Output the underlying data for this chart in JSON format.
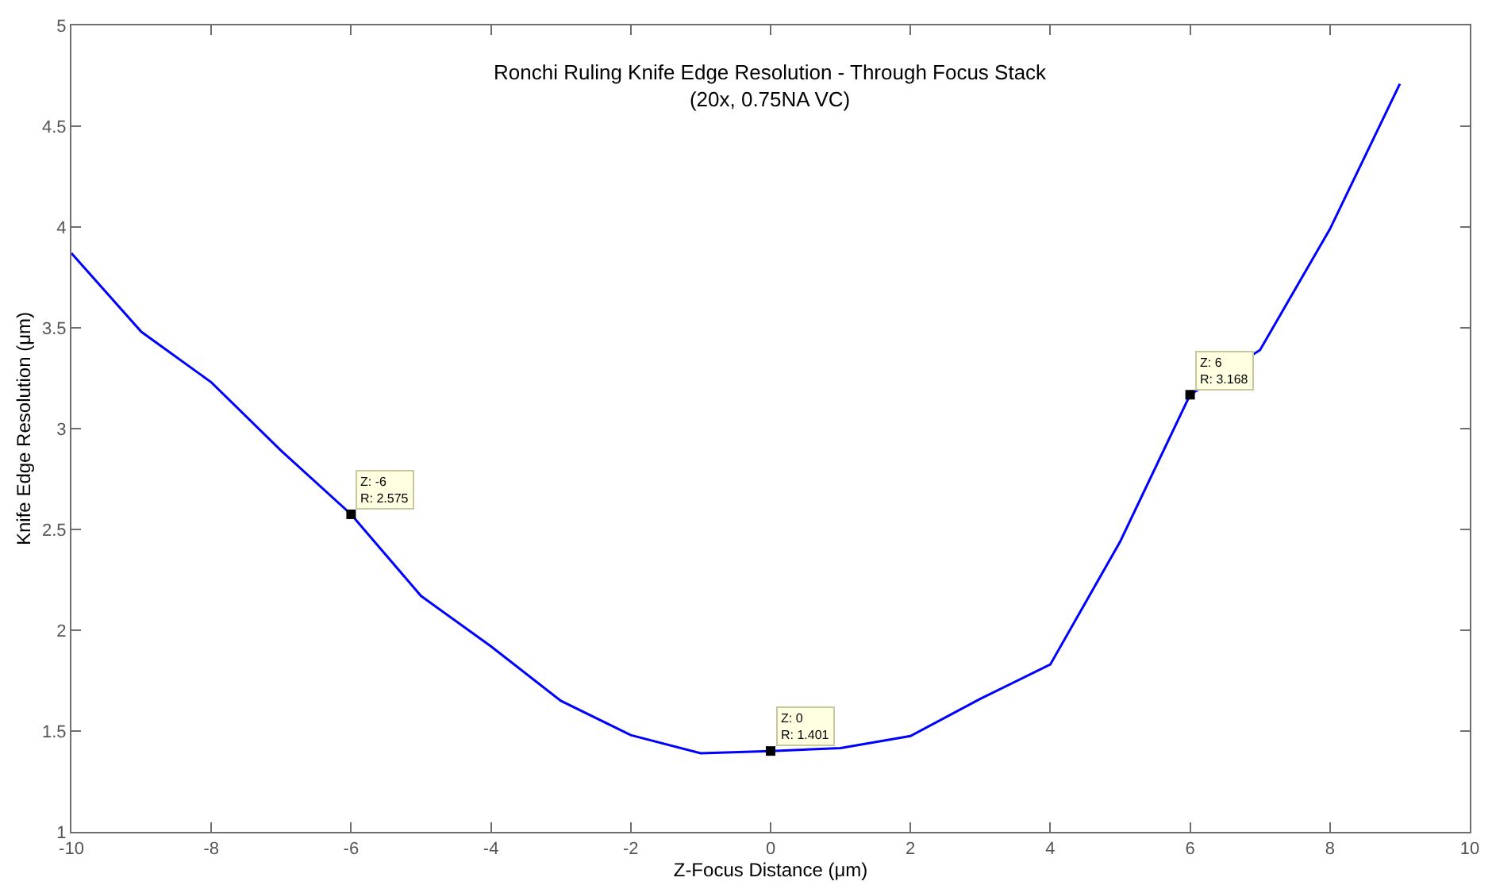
{
  "chart_data": {
    "type": "line",
    "title": "Ronchi Ruling Knife Edge Resolution - Through Focus Stack",
    "subtitle": "(20x, 0.75NA VC)",
    "xlabel": "Z-Focus Distance (μm)",
    "ylabel": "Knife Edge Resolution (μm)",
    "x": [
      -10,
      -9,
      -8,
      -7,
      -6,
      -5,
      -4,
      -3,
      -2,
      -1,
      0,
      1,
      2,
      3,
      4,
      5,
      6,
      7,
      8,
      9
    ],
    "series": [
      {
        "color": "#0000ff",
        "values": [
          3.87,
          3.48,
          3.23,
          2.89,
          2.575,
          2.17,
          1.92,
          1.65,
          1.48,
          1.39,
          1.401,
          1.415,
          1.475,
          1.66,
          1.83,
          2.44,
          3.168,
          3.39,
          3.99,
          4.71
        ]
      }
    ],
    "annotations": [
      {
        "text": "Z: -6\nR: 2.575",
        "x": -6,
        "y": 2.575
      },
      {
        "text": "Z: 0\nR: 1.401",
        "x": 0,
        "y": 1.401
      },
      {
        "text": "Z: 6\nR: 3.168",
        "x": 6,
        "y": 3.168
      }
    ],
    "xlim": [
      -10,
      10
    ],
    "xticks": [
      -10,
      -8,
      -6,
      -4,
      -2,
      0,
      2,
      4,
      6,
      8,
      10
    ],
    "ylim": [
      1,
      5
    ],
    "yticks": [
      1,
      1.5,
      2,
      2.5,
      3,
      3.5,
      4,
      4.5,
      5
    ],
    "marker": "none",
    "line_style": "solid"
  }
}
